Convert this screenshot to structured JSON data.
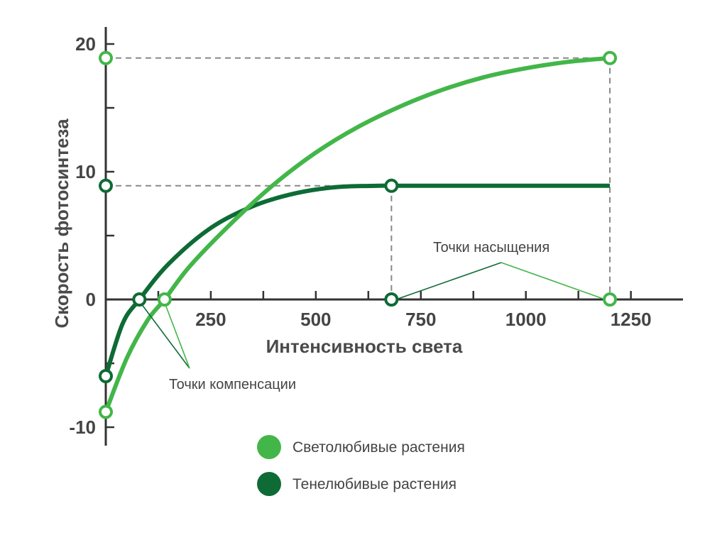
{
  "chart_data": {
    "type": "line",
    "xlabel": "Интенсивность света",
    "ylabel": "Скорость фотосинтеза",
    "xlim": [
      0,
      1375
    ],
    "ylim": [
      -11,
      21
    ],
    "x_ticks": [
      250,
      500,
      750,
      1000,
      1250
    ],
    "x_tick_labels": [
      "250",
      "500",
      "750",
      "1000",
      "1250"
    ],
    "y_ticks": [
      20,
      10,
      0,
      -10
    ],
    "y_tick_labels": [
      "20",
      "10",
      "0",
      "-10"
    ],
    "grid": false,
    "legend_placement": "bottom-center",
    "colors": {
      "light_loving": "#43b649",
      "shade_loving": "#0e6b35",
      "axis": "#333333",
      "guide": "#888888"
    },
    "series": [
      {
        "name": "Светолюбивые растения",
        "color": "#43b649",
        "x": [
          0,
          50,
          100,
          140,
          200,
          300,
          400,
          500,
          600,
          700,
          800,
          900,
          1000,
          1100,
          1200
        ],
        "y": [
          -8.8,
          -4.6,
          -1.6,
          0,
          2.6,
          6.0,
          9.0,
          11.5,
          13.5,
          15.1,
          16.4,
          17.4,
          18.1,
          18.6,
          18.9
        ]
      },
      {
        "name": "Тенелюбивые растения",
        "color": "#0e6b35",
        "x": [
          0,
          40,
          80,
          150,
          250,
          350,
          450,
          550,
          650,
          680,
          800,
          1000,
          1200
        ],
        "y": [
          -6.0,
          -1.9,
          0,
          2.8,
          5.6,
          7.3,
          8.3,
          8.8,
          8.9,
          8.9,
          8.9,
          8.9,
          8.9
        ]
      }
    ],
    "points": [
      {
        "series": 0,
        "x": 0,
        "y": -8.8
      },
      {
        "series": 0,
        "x": 140,
        "y": 0
      },
      {
        "series": 0,
        "x": 0,
        "y": 18.9
      },
      {
        "series": 0,
        "x": 1200,
        "y": 18.9
      },
      {
        "series": 0,
        "x": 1200,
        "y": 0
      },
      {
        "series": 1,
        "x": 0,
        "y": -6.0
      },
      {
        "series": 1,
        "x": 80,
        "y": 0
      },
      {
        "series": 1,
        "x": 0,
        "y": 8.9
      },
      {
        "series": 1,
        "x": 680,
        "y": 8.9
      },
      {
        "series": 1,
        "x": 680,
        "y": 0
      }
    ],
    "annotations": [
      {
        "text": "Точки компенсации"
      },
      {
        "text": "Точки насыщения"
      }
    ]
  }
}
